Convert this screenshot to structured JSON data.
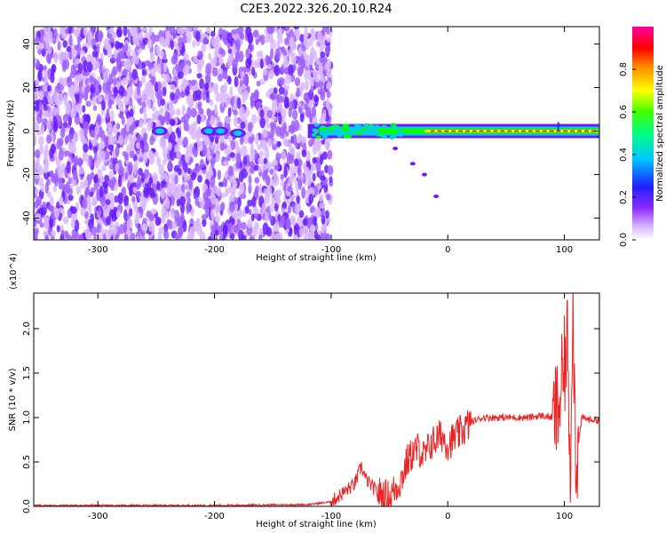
{
  "title": "C2E3.2022.326.20.10.R24",
  "chart_data": [
    {
      "type": "heatmap",
      "xlabel": "Height of straight line (km)",
      "ylabel": "Frequency (Hz)",
      "xlim": [
        -355,
        130
      ],
      "ylim": [
        -50,
        48
      ],
      "xticks": [
        -300,
        -200,
        -100,
        0,
        100
      ],
      "xtick_labels": [
        "-300",
        "-200",
        "-100",
        "0",
        "100"
      ],
      "yticks": [
        -40,
        -20,
        0,
        20,
        40
      ],
      "ytick_labels": [
        "-40",
        "-20",
        "0",
        "20",
        "40"
      ],
      "colorbar": {
        "label": "Normalized spectral amplitude",
        "range": [
          0,
          1
        ],
        "ticks": [
          0.0,
          0.2,
          0.4,
          0.6,
          0.8
        ],
        "tick_labels": [
          "0.0",
          "0.2",
          "0.4",
          "0.6",
          "0.8"
        ],
        "colormap": "rainbow"
      },
      "features": {
        "noise_region_x": [
          -355,
          -100
        ],
        "tone_frequency": 0,
        "tone_x": [
          -120,
          130
        ],
        "diagonal_trace": [
          [
            -45,
            -8
          ],
          [
            -30,
            -15
          ],
          [
            -20,
            -20
          ],
          [
            -10,
            -30
          ]
        ]
      },
      "colors": [
        "#ffffff",
        "#d9b8ff",
        "#a060ff",
        "#6a1cff",
        "#2a2aff",
        "#00d0e0",
        "#00ff00",
        "#ffff00",
        "#ff2020",
        "#ff00ff"
      ]
    },
    {
      "type": "line",
      "xlabel": "Height of straight line (km)",
      "ylabel": "SNR (10 * v/v)",
      "scale_label": "(x10^4)",
      "xlim": [
        -355,
        130
      ],
      "ylim": [
        0,
        2.4
      ],
      "xticks": [
        -300,
        -200,
        -100,
        0,
        100
      ],
      "xtick_labels": [
        "-300",
        "-200",
        "-100",
        "0",
        "100"
      ],
      "yticks": [
        0.0,
        0.5,
        1.0,
        1.5,
        2.0
      ],
      "ytick_labels": [
        "0.0",
        "0.5",
        "1.0",
        "1.5",
        "2.0"
      ],
      "line_color": "#ee2222",
      "series": [
        {
          "x": [
            -355,
            -300,
            -200,
            -120,
            -100,
            -90,
            -80,
            -74,
            -70,
            -60,
            -50,
            -40,
            -35,
            -30,
            -25,
            -20,
            -15,
            -10,
            -5,
            0,
            10,
            20,
            30,
            40,
            50,
            60,
            70,
            80,
            90,
            95,
            100,
            103,
            105,
            107,
            110,
            115,
            120,
            130
          ],
          "y": [
            0.01,
            0.01,
            0.01,
            0.02,
            0.05,
            0.15,
            0.25,
            0.45,
            0.3,
            0.15,
            0.1,
            0.3,
            0.5,
            0.6,
            0.65,
            0.55,
            0.7,
            0.75,
            0.8,
            0.7,
            0.82,
            0.95,
            1.0,
            1.0,
            1.0,
            1.0,
            1.0,
            1.02,
            1.0,
            1.1,
            1.55,
            1.9,
            0.3,
            2.4,
            0.5,
            1.0,
            0.98,
            0.97
          ]
        }
      ]
    }
  ]
}
